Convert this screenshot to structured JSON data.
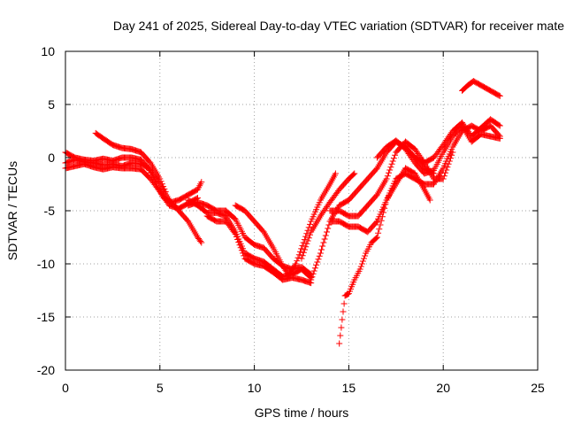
{
  "chart_data": {
    "type": "scatter",
    "title": "Day 241 of 2025, Sidereal Day-to-day VTEC variation (SDTVAR) for receiver mate",
    "xlabel": "GPS time / hours",
    "ylabel": "SDTVAR / TECUs",
    "xlim": [
      0,
      25
    ],
    "ylim": [
      -20,
      10
    ],
    "xticks": [
      0,
      5,
      10,
      15,
      20,
      25
    ],
    "yticks": [
      10,
      5,
      0,
      -5,
      -10,
      -15,
      -20
    ],
    "xtick_labels": [
      "0",
      "5",
      "10",
      "15",
      "20",
      "25"
    ],
    "ytick_labels": [
      "10",
      "5",
      "0",
      "-5",
      "-10",
      "-15",
      "-20"
    ],
    "grid": true,
    "legend": "none",
    "marker": "+",
    "color": "#ff0000",
    "series": [
      {
        "points": [
          [
            0,
            -0.5
          ],
          [
            0.5,
            -0.2
          ],
          [
            1,
            -0.4
          ],
          [
            1.5,
            -0.5
          ],
          [
            2,
            -0.7
          ],
          [
            2.5,
            -0.6
          ],
          [
            3,
            -0.8
          ],
          [
            3.5,
            -0.5
          ],
          [
            4,
            -0.6
          ],
          [
            4.4,
            -1.0
          ],
          [
            4.8,
            -2.5
          ],
          [
            5.2,
            -3.8
          ],
          [
            5.6,
            -4.2
          ],
          [
            6,
            -4.0
          ],
          [
            6.5,
            -3.5
          ],
          [
            7,
            -3.0
          ],
          [
            7.2,
            -2.3
          ]
        ]
      },
      {
        "points": [
          [
            0,
            0.5
          ],
          [
            0.5,
            0
          ],
          [
            1,
            -0.2
          ],
          [
            1.5,
            -0.3
          ],
          [
            2,
            -0.1
          ],
          [
            2.5,
            -0.3
          ],
          [
            3,
            0
          ],
          [
            3.5,
            0
          ],
          [
            4,
            -0.2
          ],
          [
            4.5,
            -1.2
          ],
          [
            5,
            -2.5
          ],
          [
            5.5,
            -4.0
          ],
          [
            6,
            -5.0
          ],
          [
            6.5,
            -6.0
          ],
          [
            7,
            -7.5
          ],
          [
            7.2,
            -8.0
          ]
        ]
      },
      {
        "points": [
          [
            0,
            -1
          ],
          [
            0.5,
            -0.8
          ],
          [
            1,
            -0.6
          ],
          [
            1.5,
            -0.9
          ],
          [
            2,
            -1.1
          ],
          [
            2.5,
            -0.9
          ],
          [
            3,
            -1.0
          ],
          [
            3.5,
            -1.0
          ],
          [
            4,
            -1.1
          ],
          [
            4.5,
            -2.0
          ],
          [
            5,
            -3.2
          ],
          [
            5.5,
            -4.5
          ],
          [
            6,
            -4.8
          ],
          [
            6.5,
            -4.3
          ],
          [
            7,
            -3.8
          ]
        ]
      },
      {
        "points": [
          [
            1.6,
            2.3
          ],
          [
            2,
            1.8
          ],
          [
            2.5,
            1.2
          ],
          [
            3,
            0.9
          ],
          [
            3.5,
            0.8
          ],
          [
            4,
            0.5
          ],
          [
            4.5,
            -0.5
          ],
          [
            5,
            -2
          ],
          [
            5.3,
            -3.2
          ]
        ]
      },
      {
        "points": [
          [
            6.5,
            -4.5
          ],
          [
            7,
            -4.2
          ],
          [
            7.5,
            -4.5
          ],
          [
            8,
            -5.0
          ],
          [
            8.5,
            -5.0
          ],
          [
            9,
            -5.8
          ],
          [
            9.5,
            -7.5
          ],
          [
            10,
            -8.2
          ],
          [
            10.5,
            -8.5
          ],
          [
            11,
            -9.5
          ],
          [
            11.5,
            -10.2
          ],
          [
            12,
            -10.5
          ],
          [
            12.5,
            -10.3
          ],
          [
            13,
            -11
          ]
        ]
      },
      {
        "points": [
          [
            6.5,
            -4
          ],
          [
            7,
            -4.5
          ],
          [
            7.5,
            -5.2
          ],
          [
            8,
            -5.2
          ],
          [
            8.5,
            -5.5
          ],
          [
            9,
            -7
          ],
          [
            9.5,
            -9
          ],
          [
            10,
            -9.5
          ],
          [
            10.5,
            -9.8
          ],
          [
            11,
            -10.5
          ],
          [
            11.5,
            -11.2
          ],
          [
            12,
            -11
          ],
          [
            12.5,
            -10.5
          ],
          [
            13,
            -11.3
          ]
        ]
      },
      {
        "points": [
          [
            7.5,
            -5.5
          ],
          [
            8,
            -6
          ],
          [
            8.5,
            -6
          ],
          [
            9,
            -7.2
          ],
          [
            9.5,
            -9.5
          ],
          [
            10,
            -10
          ],
          [
            10.5,
            -10.2
          ],
          [
            11,
            -10.8
          ],
          [
            11.5,
            -11.5
          ],
          [
            12,
            -11.3
          ],
          [
            12.5,
            -11.5
          ],
          [
            13,
            -11.8
          ]
        ]
      },
      {
        "points": [
          [
            9,
            -4.5
          ],
          [
            9.5,
            -5
          ],
          [
            10,
            -6
          ],
          [
            10.5,
            -7
          ],
          [
            11,
            -8.5
          ],
          [
            11.5,
            -10.2
          ],
          [
            11.8,
            -11
          ],
          [
            12.2,
            -10
          ]
        ]
      },
      {
        "points": [
          [
            12.2,
            -10
          ],
          [
            12.6,
            -8
          ],
          [
            13,
            -6
          ],
          [
            13.5,
            -4
          ],
          [
            14,
            -2.5
          ],
          [
            14.3,
            -1.5
          ]
        ]
      },
      {
        "points": [
          [
            12.5,
            -9.5
          ],
          [
            13,
            -7
          ],
          [
            13.5,
            -5.5
          ],
          [
            14,
            -4.2
          ],
          [
            14.5,
            -3
          ],
          [
            15,
            -2
          ],
          [
            15.3,
            -1.5
          ]
        ]
      },
      {
        "points": [
          [
            13,
            -11.5
          ],
          [
            13.5,
            -9
          ],
          [
            14,
            -6
          ],
          [
            14.5,
            -4.5
          ],
          [
            15,
            -4
          ],
          [
            15.5,
            -3
          ],
          [
            16,
            -2
          ],
          [
            16.5,
            -1
          ],
          [
            17,
            0.5
          ],
          [
            17.5,
            1.5
          ],
          [
            18,
            1
          ],
          [
            18.5,
            0
          ],
          [
            19,
            -1
          ],
          [
            19.5,
            -1.5
          ]
        ]
      },
      {
        "points": [
          [
            14,
            -5
          ],
          [
            14.5,
            -5
          ],
          [
            15,
            -5.5
          ],
          [
            15.5,
            -5.5
          ],
          [
            16,
            -4.5
          ],
          [
            16.5,
            -3.5
          ],
          [
            17,
            -2
          ],
          [
            17.5,
            0.5
          ],
          [
            18,
            1.5
          ],
          [
            18.5,
            0.8
          ],
          [
            19,
            -0.5
          ],
          [
            19.5,
            -2
          ],
          [
            20,
            -2
          ],
          [
            20.5,
            0.5
          ]
        ]
      },
      {
        "points": [
          [
            14,
            -6
          ],
          [
            14.5,
            -6
          ],
          [
            15,
            -6.5
          ],
          [
            15.5,
            -6.5
          ],
          [
            16,
            -7
          ],
          [
            16.5,
            -6
          ],
          [
            17,
            -4
          ],
          [
            17.5,
            -2.5
          ],
          [
            18,
            -1
          ],
          [
            18.5,
            -1.5
          ],
          [
            19,
            -3
          ],
          [
            19.3,
            -4
          ]
        ]
      },
      {
        "points": [
          [
            14.5,
            -17.5
          ],
          [
            14.6,
            -16
          ],
          [
            14.7,
            -14.5
          ],
          [
            14.8,
            -13
          ],
          [
            15,
            -12.8
          ],
          [
            15.3,
            -11.5
          ],
          [
            15.6,
            -10.5
          ],
          [
            15.9,
            -9
          ],
          [
            16.2,
            -8
          ],
          [
            16.5,
            -7.5
          ],
          [
            17,
            -4
          ],
          [
            17.5,
            -2
          ],
          [
            18,
            -1.5
          ],
          [
            18.5,
            -2
          ],
          [
            19,
            -2.5
          ],
          [
            19.5,
            -2.5
          ],
          [
            20,
            -1
          ],
          [
            20.5,
            1
          ],
          [
            21,
            2.5
          ],
          [
            21.5,
            3.0
          ],
          [
            22,
            2.5
          ],
          [
            22.5,
            3.0
          ],
          [
            23,
            2.0
          ]
        ]
      },
      {
        "points": [
          [
            17.5,
            1.5
          ],
          [
            18,
            1.0
          ],
          [
            18.5,
            0
          ],
          [
            19,
            -0.5
          ],
          [
            19.5,
            0
          ],
          [
            20,
            1.2
          ],
          [
            20.5,
            2.5
          ],
          [
            21,
            3.3
          ],
          [
            21.5,
            2.0
          ],
          [
            22,
            2.8
          ],
          [
            22.5,
            3.6
          ],
          [
            23,
            3.0
          ]
        ]
      },
      {
        "points": [
          [
            16.5,
            0
          ],
          [
            17,
            1.0
          ],
          [
            17.5,
            1.6
          ],
          [
            18,
            0.8
          ],
          [
            18.5,
            -0.5
          ],
          [
            19,
            -1.5
          ],
          [
            19.5,
            -1.2
          ],
          [
            20,
            0.5
          ],
          [
            20.5,
            2
          ],
          [
            21,
            3
          ],
          [
            21.5,
            1.5
          ],
          [
            22,
            2.2
          ],
          [
            22.5,
            2.0
          ],
          [
            23,
            1.8
          ]
        ]
      },
      {
        "points": [
          [
            21.0,
            6.3
          ],
          [
            21.3,
            6.8
          ],
          [
            21.6,
            7.2
          ],
          [
            22.0,
            6.8
          ],
          [
            22.5,
            6.3
          ],
          [
            23.0,
            5.8
          ]
        ]
      }
    ]
  }
}
